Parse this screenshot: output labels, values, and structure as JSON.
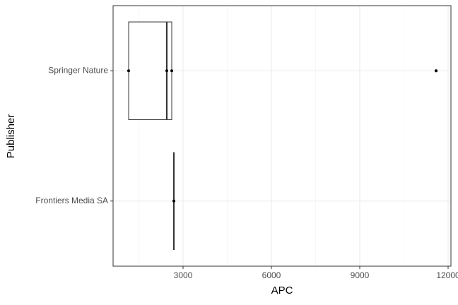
{
  "chart_data": {
    "type": "boxplot",
    "orientation": "horizontal",
    "x_label": "APC",
    "y_label": "Publisher",
    "categories": [
      "Springer Nature",
      "Frontiers Media SA"
    ],
    "boxes": [
      {
        "min": 1152,
        "q1": 1152,
        "median": 2448,
        "q3": 2616,
        "max": 2616,
        "outliers": [
          11592
        ],
        "points": [
          1152,
          2448,
          2616,
          11592
        ]
      },
      {
        "min": 2688,
        "q1": 2688,
        "median": 2688,
        "q3": 2688,
        "max": 2688,
        "outliers": [],
        "points": [
          2688
        ]
      }
    ],
    "xlim": [
      624,
      12096
    ],
    "xticks": [
      3000,
      6000,
      9000,
      12000
    ],
    "xminorticks": [
      1500,
      4500,
      7500,
      10500
    ],
    "grid": true,
    "box_color": "#333333",
    "point_color": "#000000"
  }
}
